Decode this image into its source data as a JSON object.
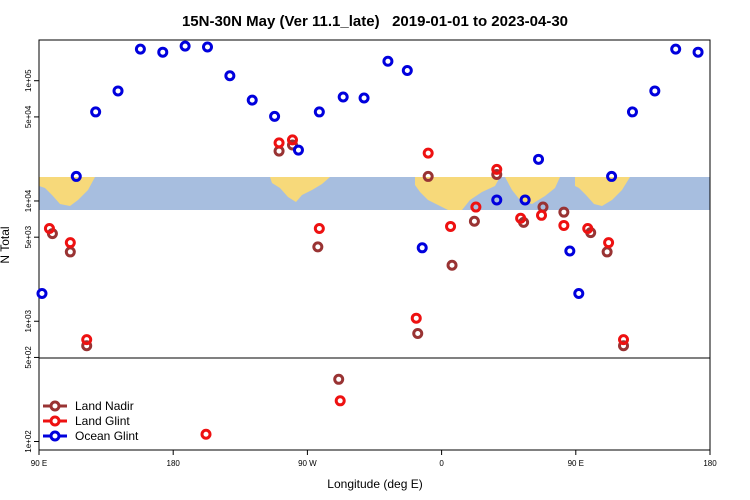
{
  "chart_data": {
    "type": "scatter",
    "title": "15N-30N May (Ver 11.1_late)   2019-01-01 to 2023-04-30",
    "xlabel": "Longitude (deg E)",
    "ylabel": "N Total",
    "xlim": [
      90,
      540
    ],
    "ylim": [
      85,
      218000
    ],
    "log_y": true,
    "xticks": [
      {
        "value": 90,
        "label": "90 E"
      },
      180,
      {
        "value": 270,
        "label": "90 W"
      },
      {
        "value": 360,
        "label": "0"
      },
      {
        "value": 450,
        "label": "90 E"
      },
      {
        "value": 540,
        "label": "180"
      }
    ],
    "yticks": [
      {
        "value": 100,
        "label": "1e+02"
      },
      {
        "value": 500,
        "label": "5e+02"
      },
      {
        "value": 1000,
        "label": "1e+03"
      },
      {
        "value": 5000,
        "label": "5e+03"
      },
      {
        "value": 10000,
        "label": "1e+04"
      },
      {
        "value": 50000,
        "label": "5e+04"
      },
      {
        "value": 100000,
        "label": "1e+05"
      }
    ],
    "legend": "lower left",
    "series": [
      {
        "name": "Land Nadir",
        "color": "#993333",
        "x": [
          99,
          111,
          122,
          251,
          260,
          277,
          291,
          344,
          351,
          367,
          382,
          397,
          415,
          428,
          442,
          460,
          471,
          482
        ],
        "values": [
          5350,
          3770,
          626,
          26000,
          29200,
          4150,
          329,
          791,
          16000,
          2920,
          6780,
          16600,
          6640,
          8900,
          8070,
          5460,
          3770,
          626
        ]
      },
      {
        "name": "Land Glint",
        "color": "#ee1111",
        "x": [
          97,
          111,
          122,
          202,
          251,
          260,
          278,
          292,
          343,
          351,
          366,
          383,
          397,
          413,
          427,
          442,
          458,
          472,
          482
        ],
        "values": [
          5900,
          4500,
          703,
          115,
          30400,
          32200,
          5900,
          218,
          1060,
          25000,
          6140,
          8900,
          18300,
          7180,
          7600,
          6260,
          5900,
          4500,
          703
        ]
      },
      {
        "name": "Ocean Glint",
        "color": "#0000dd",
        "x": [
          92,
          115,
          128,
          143,
          158,
          173,
          188,
          203,
          218,
          233,
          248,
          264,
          278,
          294,
          308,
          324,
          337,
          347,
          397,
          416,
          425,
          446,
          452,
          474,
          488,
          503,
          517,
          532
        ],
        "values": [
          1700,
          16000,
          55000,
          82200,
          183000,
          172600,
          194000,
          190500,
          110000,
          69000,
          50500,
          26500,
          55000,
          73200,
          71800,
          145000,
          121600,
          4080,
          10200,
          10200,
          22200,
          3840,
          1700,
          16000,
          55000,
          82200,
          183000,
          172600
        ]
      }
    ]
  }
}
